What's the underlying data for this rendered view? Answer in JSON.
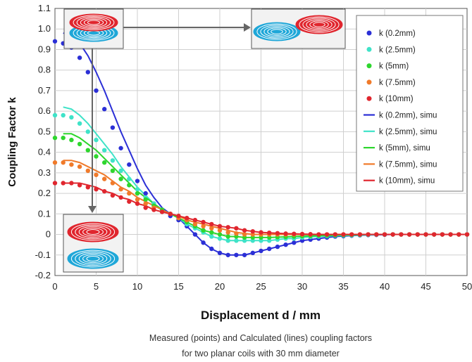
{
  "chart_data": {
    "type": "line",
    "xlabel": "Displacement d / mm",
    "ylabel": "Coupling Factor k",
    "caption_line1": "Measured (points) and Calculated (lines) coupling factors",
    "caption_line2": "for two planar coils with 30 mm diameter",
    "xlim": [
      0,
      50
    ],
    "ylim": [
      -0.2,
      1.1
    ],
    "x_ticks": [
      0,
      5,
      10,
      15,
      20,
      25,
      30,
      35,
      40,
      45,
      50
    ],
    "y_ticks": [
      -0.2,
      -0.1,
      0,
      0.1,
      0.2,
      0.3,
      0.4,
      0.5,
      0.6,
      0.7,
      0.8,
      0.9,
      1.0,
      1.1
    ],
    "y_tick_labels": [
      "-0.2",
      "-0.1",
      "0",
      "0.1",
      "0.2",
      "0.3",
      "0.4",
      "0.5",
      "0.6",
      "0.7",
      "0.8",
      "0.9",
      "1.0",
      "1.1"
    ],
    "grid": true,
    "legend_position": "top-right",
    "x": [
      0,
      1,
      2,
      3,
      4,
      5,
      6,
      7,
      8,
      9,
      10,
      11,
      12,
      13,
      14,
      15,
      16,
      17,
      18,
      19,
      20,
      21,
      22,
      23,
      24,
      25,
      26,
      27,
      28,
      29,
      30,
      31,
      32,
      33,
      34,
      35,
      36,
      37,
      38,
      39,
      40,
      41,
      42,
      43,
      44,
      45,
      46,
      47,
      48,
      49,
      50
    ],
    "series": [
      {
        "name": "k (0.2mm)",
        "kind": "points",
        "color": "#2b2fd6",
        "values": [
          0.94,
          0.93,
          0.91,
          0.86,
          0.79,
          0.7,
          0.61,
          0.52,
          0.42,
          0.34,
          0.26,
          0.2,
          0.15,
          0.11,
          0.09,
          0.07,
          0.04,
          0.0,
          -0.04,
          -0.07,
          -0.09,
          -0.1,
          -0.1,
          -0.1,
          -0.09,
          -0.08,
          -0.07,
          -0.06,
          -0.05,
          -0.04,
          -0.03,
          -0.025,
          -0.02,
          -0.015,
          -0.01,
          -0.008,
          -0.006,
          -0.004,
          -0.003,
          -0.002,
          -0.001,
          0,
          0,
          0,
          0,
          0,
          0,
          0,
          0,
          0,
          0
        ]
      },
      {
        "name": "k (2.5mm)",
        "kind": "points",
        "color": "#3fe3c8",
        "values": [
          0.58,
          0.58,
          0.57,
          0.54,
          0.5,
          0.46,
          0.41,
          0.36,
          0.31,
          0.27,
          0.22,
          0.18,
          0.15,
          0.12,
          0.1,
          0.08,
          0.05,
          0.03,
          0.01,
          -0.01,
          -0.02,
          -0.03,
          -0.03,
          -0.03,
          -0.03,
          -0.03,
          -0.03,
          -0.025,
          -0.02,
          -0.02,
          -0.015,
          -0.012,
          -0.01,
          -0.008,
          -0.006,
          -0.005,
          -0.004,
          -0.003,
          -0.002,
          -0.001,
          0,
          0,
          0,
          0,
          0,
          0,
          0,
          0,
          0,
          0,
          0
        ]
      },
      {
        "name": "k (5mm)",
        "kind": "points",
        "color": "#2ed62e",
        "values": [
          0.47,
          0.47,
          0.46,
          0.44,
          0.41,
          0.38,
          0.35,
          0.31,
          0.27,
          0.24,
          0.2,
          0.17,
          0.14,
          0.12,
          0.1,
          0.08,
          0.06,
          0.04,
          0.02,
          0.01,
          0,
          -0.01,
          -0.01,
          -0.015,
          -0.015,
          -0.015,
          -0.015,
          -0.013,
          -0.012,
          -0.01,
          -0.008,
          -0.007,
          -0.006,
          -0.005,
          -0.004,
          -0.003,
          -0.002,
          -0.001,
          0,
          0,
          0,
          0,
          0,
          0,
          0,
          0,
          0,
          0,
          0,
          0,
          0
        ]
      },
      {
        "name": "k (7.5mm)",
        "kind": "points",
        "color": "#f07a2a",
        "values": [
          0.35,
          0.35,
          0.34,
          0.33,
          0.31,
          0.29,
          0.27,
          0.25,
          0.22,
          0.2,
          0.17,
          0.15,
          0.13,
          0.11,
          0.1,
          0.08,
          0.07,
          0.05,
          0.04,
          0.03,
          0.02,
          0.01,
          0.005,
          0,
          0,
          0,
          0,
          0,
          0,
          0,
          0,
          0,
          0,
          0,
          0,
          0,
          0,
          0,
          0,
          0,
          0,
          0,
          0,
          0,
          0,
          0,
          0,
          0,
          0,
          0,
          0
        ]
      },
      {
        "name": "k (10mm)",
        "kind": "points",
        "color": "#e0262e",
        "values": [
          0.25,
          0.25,
          0.25,
          0.24,
          0.23,
          0.22,
          0.21,
          0.19,
          0.18,
          0.16,
          0.15,
          0.13,
          0.12,
          0.11,
          0.1,
          0.09,
          0.08,
          0.07,
          0.06,
          0.05,
          0.04,
          0.035,
          0.03,
          0.02,
          0.015,
          0.01,
          0.008,
          0.006,
          0.004,
          0.003,
          0.002,
          0.001,
          0,
          0,
          0,
          0,
          0,
          0,
          0,
          0,
          0,
          0,
          0,
          0,
          0,
          0,
          0,
          0,
          0,
          0,
          0
        ]
      },
      {
        "name": "k (0.2mm), simu",
        "kind": "line",
        "color": "#2b2fd6",
        "values": [
          null,
          0.98,
          0.97,
          0.93,
          0.87,
          0.79,
          0.7,
          0.6,
          0.5,
          0.41,
          0.32,
          0.24,
          0.18,
          0.13,
          0.1,
          0.08,
          0.04,
          0.0,
          -0.04,
          -0.07,
          -0.09,
          -0.1,
          -0.1,
          -0.1,
          -0.09,
          -0.08,
          -0.07,
          -0.06,
          -0.05,
          -0.04,
          -0.03,
          -0.025,
          -0.02,
          -0.015,
          -0.01,
          -0.008,
          -0.006,
          -0.004,
          -0.003,
          -0.002,
          -0.001,
          0,
          0,
          0,
          0,
          0,
          0,
          0,
          0,
          0,
          0
        ]
      },
      {
        "name": "k (2.5mm), simu",
        "kind": "line",
        "color": "#3fe3c8",
        "values": [
          null,
          0.62,
          0.61,
          0.58,
          0.54,
          0.49,
          0.44,
          0.39,
          0.33,
          0.28,
          0.23,
          0.19,
          0.15,
          0.12,
          0.1,
          0.08,
          0.05,
          0.03,
          0.01,
          -0.01,
          -0.02,
          -0.03,
          -0.03,
          -0.03,
          -0.03,
          -0.03,
          -0.03,
          -0.025,
          -0.02,
          -0.02,
          -0.015,
          -0.012,
          -0.01,
          -0.008,
          -0.006,
          -0.005,
          -0.004,
          -0.003,
          -0.002,
          -0.001,
          0,
          0,
          0,
          0,
          0,
          0,
          0,
          0,
          0,
          0,
          0
        ]
      },
      {
        "name": "k (5mm), simu",
        "kind": "line",
        "color": "#2ed62e",
        "values": [
          null,
          0.49,
          0.49,
          0.47,
          0.44,
          0.41,
          0.37,
          0.33,
          0.29,
          0.25,
          0.21,
          0.18,
          0.15,
          0.12,
          0.1,
          0.08,
          0.06,
          0.04,
          0.02,
          0.01,
          0,
          -0.01,
          -0.01,
          -0.015,
          -0.015,
          -0.015,
          -0.015,
          -0.013,
          -0.012,
          -0.01,
          -0.008,
          -0.007,
          -0.006,
          -0.005,
          -0.004,
          -0.003,
          -0.002,
          -0.001,
          0,
          0,
          0,
          0,
          0,
          0,
          0,
          0,
          0,
          0,
          0,
          0,
          0
        ]
      },
      {
        "name": "k (7.5mm), simu",
        "kind": "line",
        "color": "#f07a2a",
        "values": [
          null,
          0.36,
          0.36,
          0.35,
          0.33,
          0.31,
          0.29,
          0.26,
          0.23,
          0.21,
          0.18,
          0.16,
          0.14,
          0.12,
          0.1,
          0.09,
          0.07,
          0.06,
          0.05,
          0.04,
          0.03,
          0.02,
          0.01,
          0.005,
          0,
          0,
          0,
          0,
          0,
          0,
          0,
          0,
          0,
          0,
          0,
          0,
          0,
          0,
          0,
          0,
          0,
          0,
          0,
          0,
          0,
          0,
          0,
          0,
          0,
          0,
          0
        ]
      },
      {
        "name": "k (10mm), simu",
        "kind": "line",
        "color": "#e0262e",
        "values": [
          null,
          0.25,
          0.25,
          0.25,
          0.24,
          0.23,
          0.21,
          0.2,
          0.18,
          0.17,
          0.15,
          0.14,
          0.12,
          0.11,
          0.1,
          0.09,
          0.08,
          0.07,
          0.06,
          0.05,
          0.04,
          0.035,
          0.03,
          0.02,
          0.015,
          0.01,
          0.008,
          0.006,
          0.004,
          0.003,
          0.002,
          0.001,
          0,
          0,
          0,
          0,
          0,
          0,
          0,
          0,
          0,
          0,
          0,
          0,
          0,
          0,
          0,
          0,
          0,
          0,
          0
        ]
      }
    ],
    "insets": [
      {
        "id": "inset-aligned-top",
        "anchor_x": 0,
        "anchor_y": 1.02
      },
      {
        "id": "inset-shifted",
        "anchor_x": 25,
        "anchor_y": 1.05
      },
      {
        "id": "inset-aligned-bottom",
        "anchor_x": 0,
        "anchor_y": -0.05
      }
    ],
    "arrows": [
      {
        "from_x": 4.5,
        "from_y": 1.05,
        "to_x": 24,
        "to_y": 1.05
      },
      {
        "from_x": 4.5,
        "from_y": 0.85,
        "to_x": 4.5,
        "to_y": 0.25
      }
    ]
  }
}
